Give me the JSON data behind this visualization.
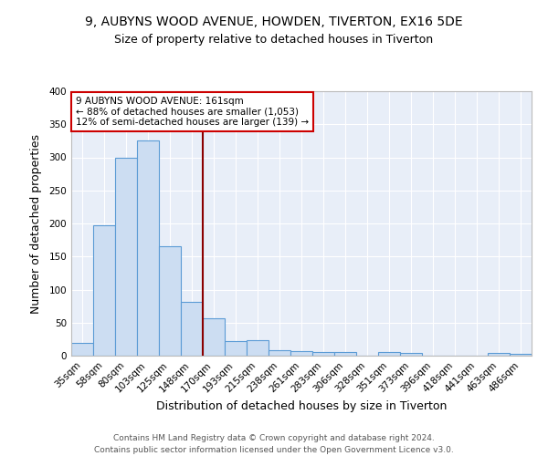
{
  "title_line1": "9, AUBYNS WOOD AVENUE, HOWDEN, TIVERTON, EX16 5DE",
  "title_line2": "Size of property relative to detached houses in Tiverton",
  "xlabel": "Distribution of detached houses by size in Tiverton",
  "ylabel": "Number of detached properties",
  "categories": [
    "35sqm",
    "58sqm",
    "80sqm",
    "103sqm",
    "125sqm",
    "148sqm",
    "170sqm",
    "193sqm",
    "215sqm",
    "238sqm",
    "261sqm",
    "283sqm",
    "306sqm",
    "328sqm",
    "351sqm",
    "373sqm",
    "396sqm",
    "418sqm",
    "441sqm",
    "463sqm",
    "486sqm"
  ],
  "values": [
    20,
    197,
    299,
    325,
    165,
    82,
    57,
    22,
    23,
    8,
    7,
    6,
    5,
    0,
    5,
    4,
    0,
    0,
    0,
    4,
    3
  ],
  "bar_color": "#ccddf2",
  "bar_edge_color": "#5b9bd5",
  "vline_color": "#8b0000",
  "annotation_text": "9 AUBYNS WOOD AVENUE: 161sqm\n← 88% of detached houses are smaller (1,053)\n12% of semi-detached houses are larger (139) →",
  "annotation_box_color": "white",
  "annotation_box_edge_color": "#cc0000",
  "ylim": [
    0,
    400
  ],
  "yticks": [
    0,
    50,
    100,
    150,
    200,
    250,
    300,
    350,
    400
  ],
  "background_color": "#e8eef8",
  "footer_line1": "Contains HM Land Registry data © Crown copyright and database right 2024.",
  "footer_line2": "Contains public sector information licensed under the Open Government Licence v3.0.",
  "title_fontsize": 10,
  "subtitle_fontsize": 9,
  "axis_label_fontsize": 9,
  "tick_fontsize": 7.5,
  "annotation_fontsize": 7.5,
  "footer_fontsize": 6.5
}
